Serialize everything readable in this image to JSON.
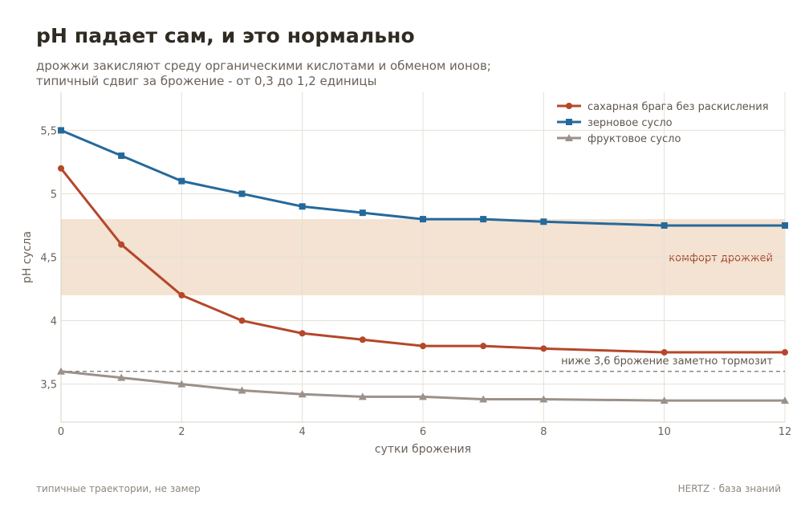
{
  "header": {
    "title": "pH падает сам, и это нормально",
    "subtitle_lines": [
      "дрожжи закисляют среду органическими кислотами и обменом ионов;",
      "типичный сдвиг за брожение - от 0,3 до 1,2 единицы"
    ]
  },
  "footer": {
    "left": "типичные траектории, не замер",
    "right": "HERTZ · база знаний"
  },
  "chart_data": {
    "type": "line",
    "xlabel": "сутки брожения",
    "ylabel": "pH сусла",
    "xlim": [
      0,
      12
    ],
    "ylim": [
      3.2,
      5.8
    ],
    "x_ticks": [
      0,
      2,
      4,
      6,
      8,
      10,
      12
    ],
    "x_tick_labels": [
      "0",
      "2",
      "4",
      "6",
      "8",
      "10",
      "12"
    ],
    "y_ticks": [
      3.5,
      4,
      4.5,
      5,
      5.5
    ],
    "y_tick_labels": [
      "3,5",
      "4",
      "4,5",
      "5",
      "5,5"
    ],
    "grid": true,
    "legend_position": "top-right",
    "series": [
      {
        "name": "сахарная брага без раскисления",
        "color": "#b5472a",
        "marker": "circle",
        "x": [
          0,
          1,
          2,
          3,
          4,
          5,
          6,
          7,
          8,
          10,
          12
        ],
        "y": [
          5.2,
          4.6,
          4.2,
          4.0,
          3.9,
          3.85,
          3.8,
          3.8,
          3.78,
          3.75,
          3.75
        ]
      },
      {
        "name": "зерновое сусло",
        "color": "#25699b",
        "marker": "square",
        "x": [
          0,
          1,
          2,
          3,
          4,
          5,
          6,
          7,
          8,
          10,
          12
        ],
        "y": [
          5.5,
          5.3,
          5.1,
          5.0,
          4.9,
          4.85,
          4.8,
          4.8,
          4.78,
          4.75,
          4.75
        ]
      },
      {
        "name": "фруктовое сусло",
        "color": "#9b918a",
        "marker": "triangle",
        "x": [
          0,
          1,
          2,
          3,
          4,
          5,
          6,
          7,
          8,
          10,
          12
        ],
        "y": [
          3.6,
          3.55,
          3.5,
          3.45,
          3.42,
          3.4,
          3.4,
          3.38,
          3.38,
          3.37,
          3.37
        ]
      }
    ],
    "bands": [
      {
        "y_from": 4.2,
        "y_to": 4.8,
        "color": "#f4e2d2",
        "label": "комфорт дрожжей",
        "label_color": "#a3452a"
      }
    ],
    "reference_lines": [
      {
        "y": 3.6,
        "style": "dashed",
        "color": "#8f8780",
        "label": "ниже 3,6 брожение заметно тормозит"
      }
    ]
  }
}
